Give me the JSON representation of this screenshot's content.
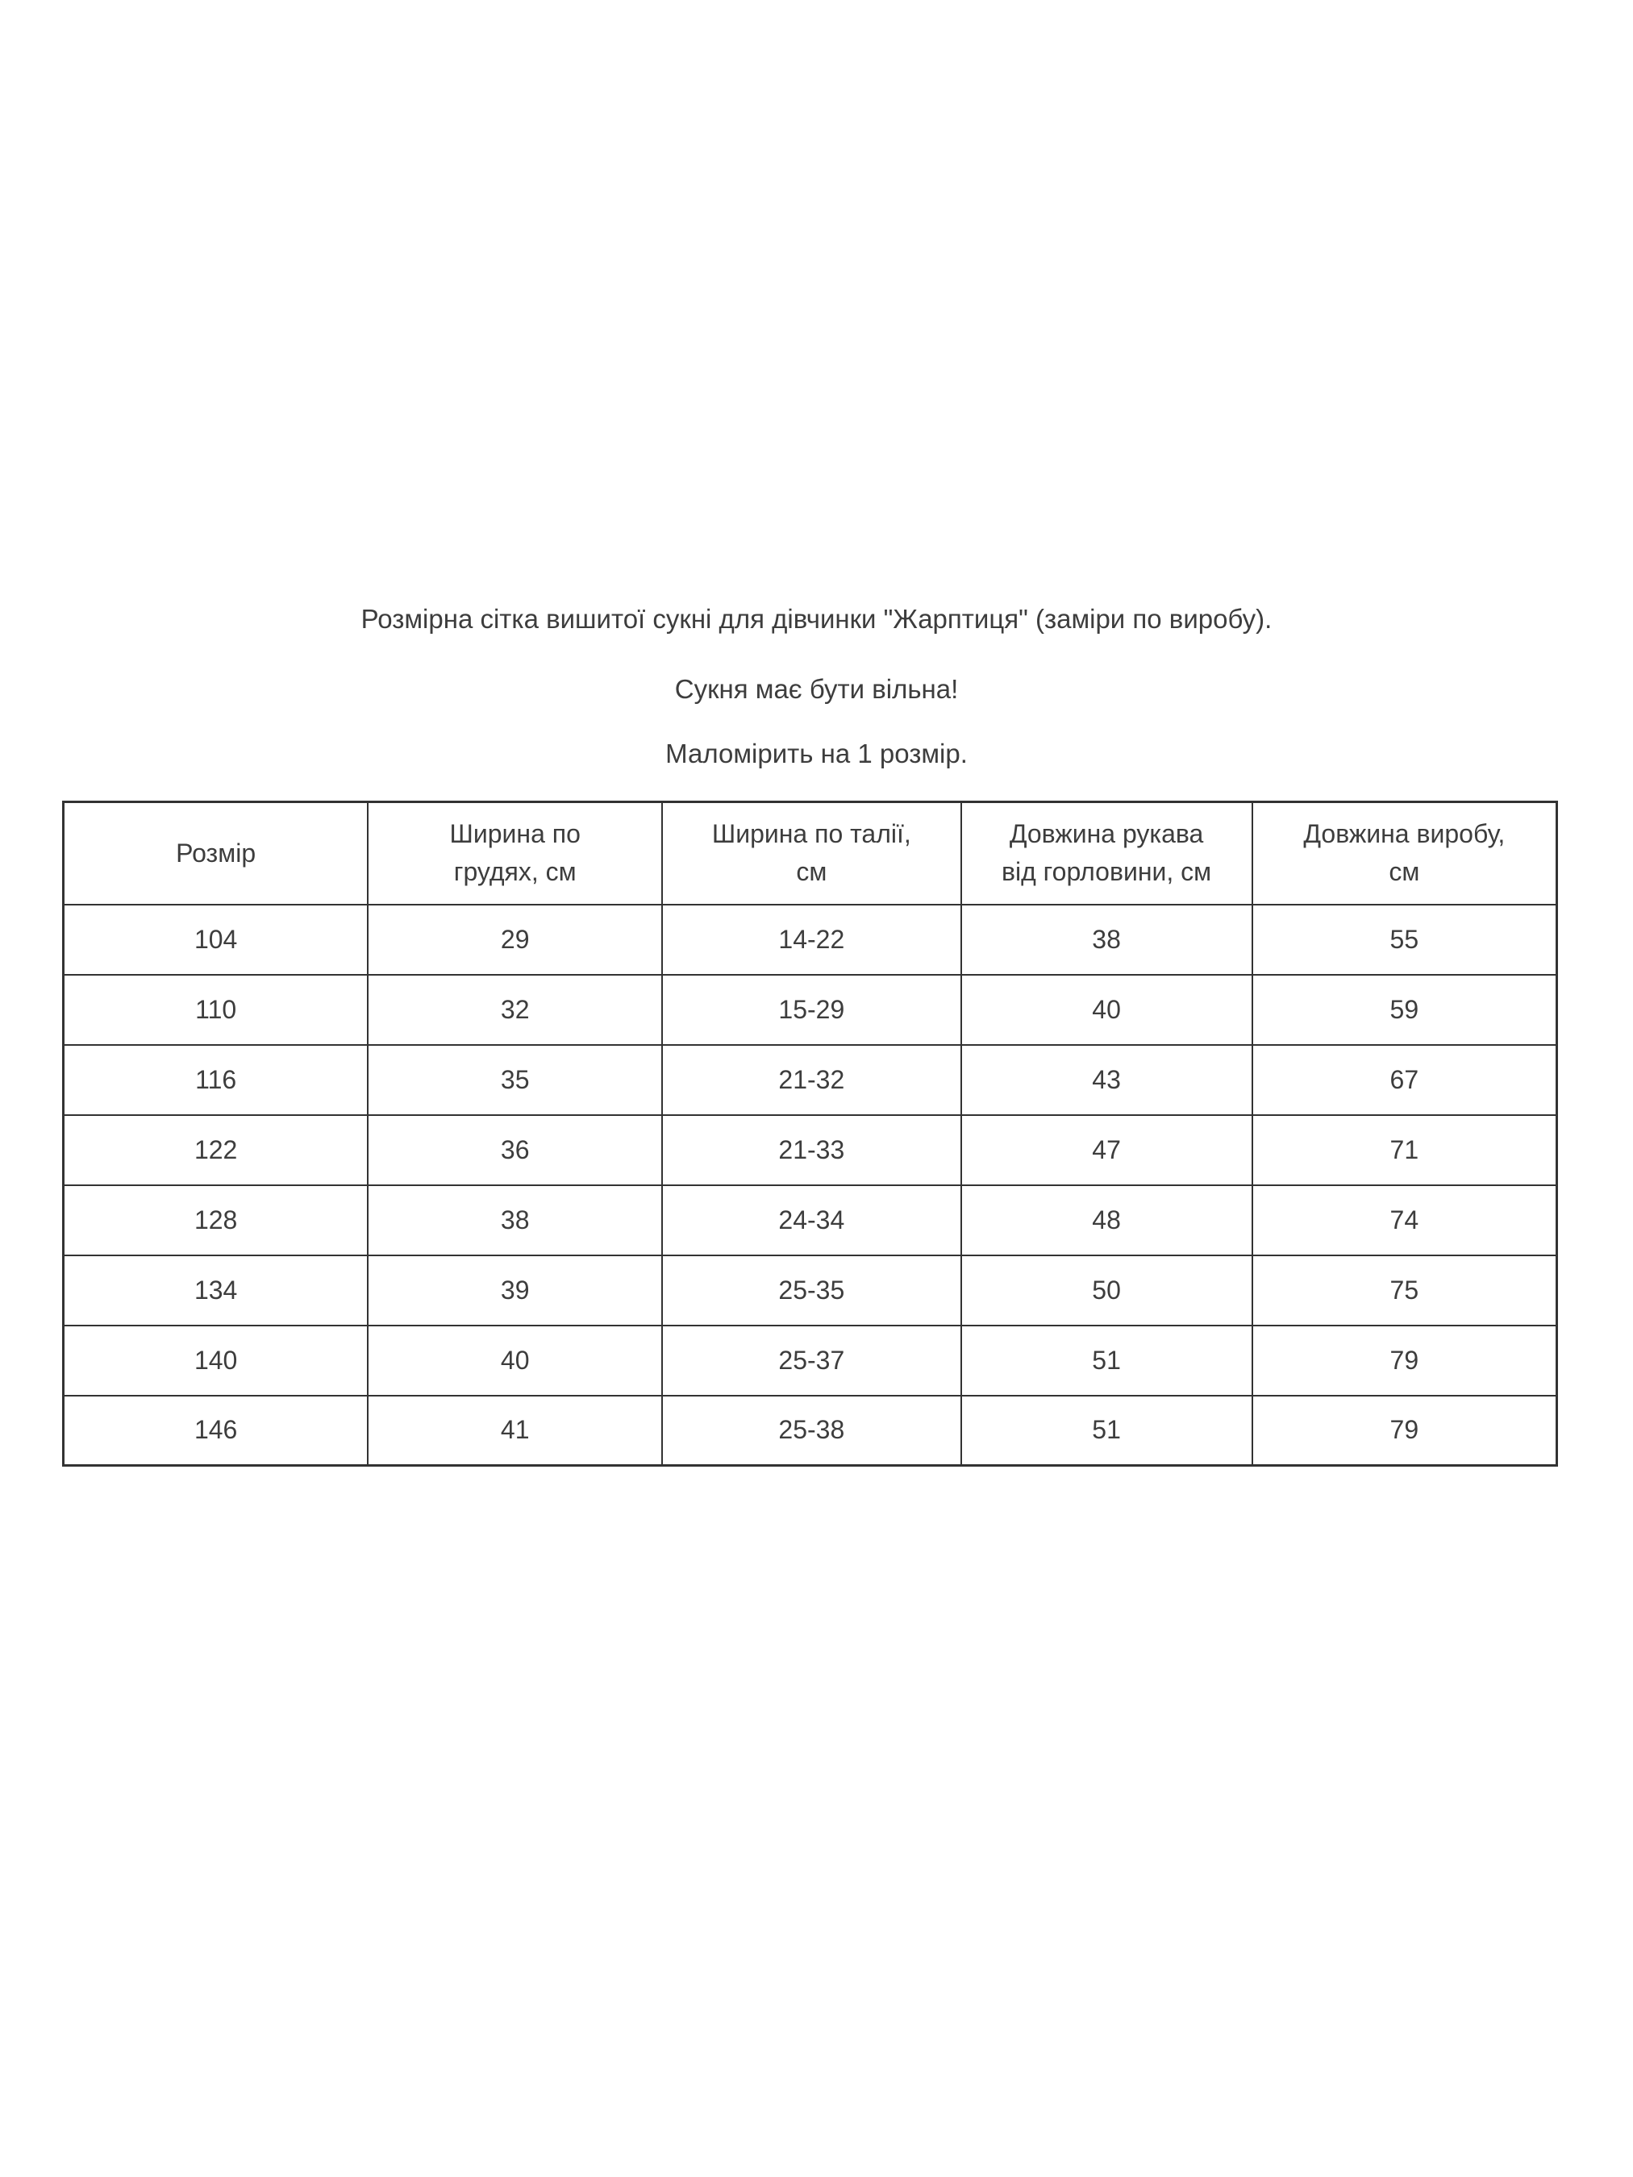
{
  "page": {
    "title": "Розмірна сітка вишитої сукні для дівчинки \"Жарптиця\" (заміри по виробу).",
    "subtitle1": "Сукня має бути вільна!",
    "subtitle2": "Маломірить на 1 розмір."
  },
  "colors": {
    "background": "#ffffff",
    "text": "#3d3d3d",
    "border": "#333333"
  },
  "table": {
    "headers": [
      "Розмір",
      "Ширина по\nгрудях, см",
      "Ширина по талії,\nсм",
      "Довжина рукава\nвід горловини, см",
      "Довжина виробу,\nсм"
    ],
    "column_names": [
      "size",
      "chest-width",
      "waist-width",
      "sleeve-length",
      "item-length"
    ],
    "rows": [
      [
        "104",
        "29",
        "14-22",
        "38",
        "55"
      ],
      [
        "110",
        "32",
        "15-29",
        "40",
        "59"
      ],
      [
        "116",
        "35",
        "21-32",
        "43",
        "67"
      ],
      [
        "122",
        "36",
        "21-33",
        "47",
        "71"
      ],
      [
        "128",
        "38",
        "24-34",
        "48",
        "74"
      ],
      [
        "134",
        "39",
        "25-35",
        "50",
        "75"
      ],
      [
        "140",
        "40",
        "25-37",
        "51",
        "79"
      ],
      [
        "146",
        "41",
        "25-38",
        "51",
        "79"
      ]
    ]
  }
}
